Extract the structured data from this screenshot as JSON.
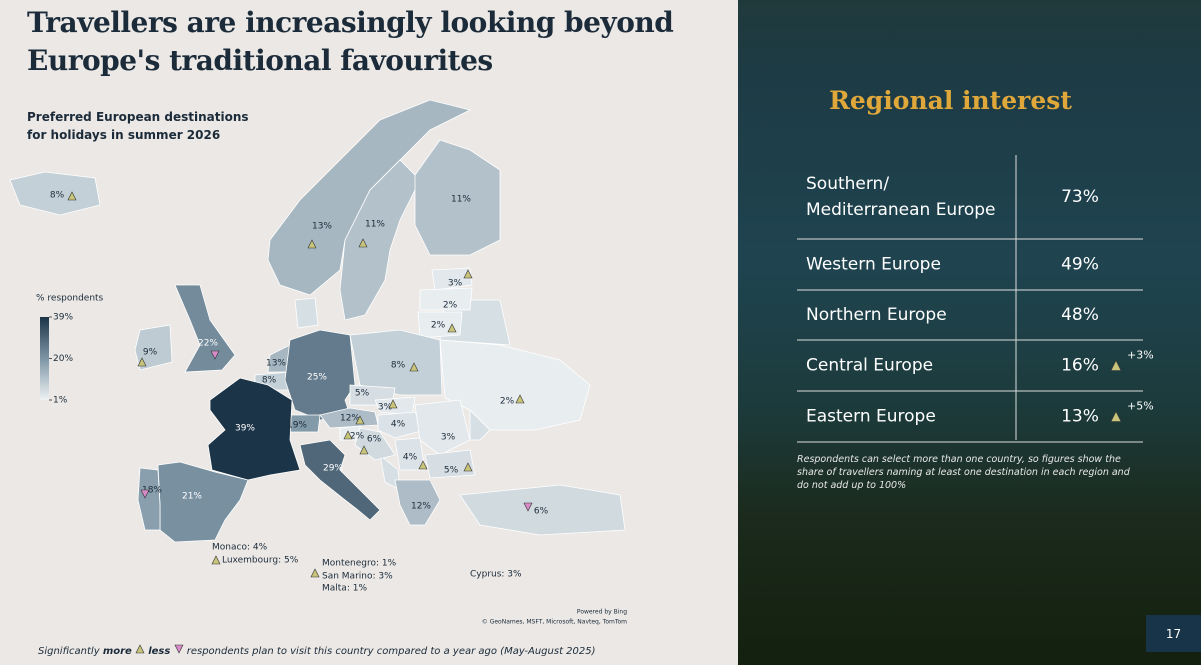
{
  "title": "Travellers are increasingly looking beyond Europe's traditional favourites",
  "map": {
    "subtitle_lines": [
      "Preferred European destinations",
      "for holidays in summer 2026"
    ],
    "legend_title": "% respondents",
    "legend_ticks": [
      {
        "value": 39,
        "label": "39%"
      },
      {
        "value": 20,
        "label": "20%"
      },
      {
        "value": 1,
        "label": "1%"
      }
    ],
    "regions": [
      {
        "value": 8,
        "label": "8%"
      },
      {
        "value": 13,
        "label": "13%"
      },
      {
        "value": 11,
        "label": "11%"
      },
      {
        "value": 11,
        "label": "11%"
      },
      {
        "value": 3,
        "label": "3%"
      },
      {
        "value": 2,
        "label": "2%"
      },
      {
        "value": 2,
        "label": "2%"
      },
      {
        "value": 9,
        "label": "9%"
      },
      {
        "value": 22,
        "label": "22%"
      },
      {
        "value": 13,
        "label": "13%"
      },
      {
        "value": 8,
        "label": "8%"
      },
      {
        "value": 25,
        "label": "25%"
      },
      {
        "value": 8,
        "label": "8%"
      },
      {
        "value": 5,
        "label": "5%"
      },
      {
        "value": 3,
        "label": "3%"
      },
      {
        "value": 12,
        "label": "12%"
      },
      {
        "value": 19,
        "label": "19%"
      },
      {
        "value": 4,
        "label": "4%"
      },
      {
        "value": 2,
        "label": "2%"
      },
      {
        "value": 3,
        "label": "3%"
      },
      {
        "value": 2,
        "label": "2%"
      },
      {
        "value": 6,
        "label": "6%"
      },
      {
        "value": 4,
        "label": "4%"
      },
      {
        "value": 5,
        "label": "5%"
      },
      {
        "value": 39,
        "label": "39%"
      },
      {
        "value": 29,
        "label": "29%"
      },
      {
        "value": 21,
        "label": "21%"
      },
      {
        "value": 18,
        "label": "18%"
      },
      {
        "value": 12,
        "label": "12%"
      },
      {
        "value": 6,
        "label": "6%"
      }
    ],
    "small_states": [
      "Monaco: 4%",
      "Luxembourg: 5%",
      "Montenegro: 1%",
      "San Marino: 3%",
      "Malta: 1%",
      "Cyprus: 3%"
    ],
    "attribution": [
      "Powered by Bing",
      "© GeoNames, MSFT, Microsoft, Navteq, TomTom"
    ],
    "footer": {
      "lead": "Significantly",
      "more": "more",
      "less": "less",
      "rest": "respondents plan to visit this country compared to a year ago (May-August 2025)"
    }
  },
  "panel": {
    "title": "Regional interest",
    "rows": [
      {
        "region": "Southern/ Mediterranean Europe",
        "share": "73%"
      },
      {
        "region": "Western Europe",
        "share": "49%"
      },
      {
        "region": "Northern Europe",
        "share": "48%"
      },
      {
        "region": "Central Europe",
        "share": "16%",
        "change": "+3%"
      },
      {
        "region": "Eastern Europe",
        "share": "13%",
        "change": "+5%"
      }
    ],
    "note": "Respondents can select more than one country, so figures show the share of travellers naming at least one destination in each region and do not add up to 100%",
    "page_number": "17"
  }
}
